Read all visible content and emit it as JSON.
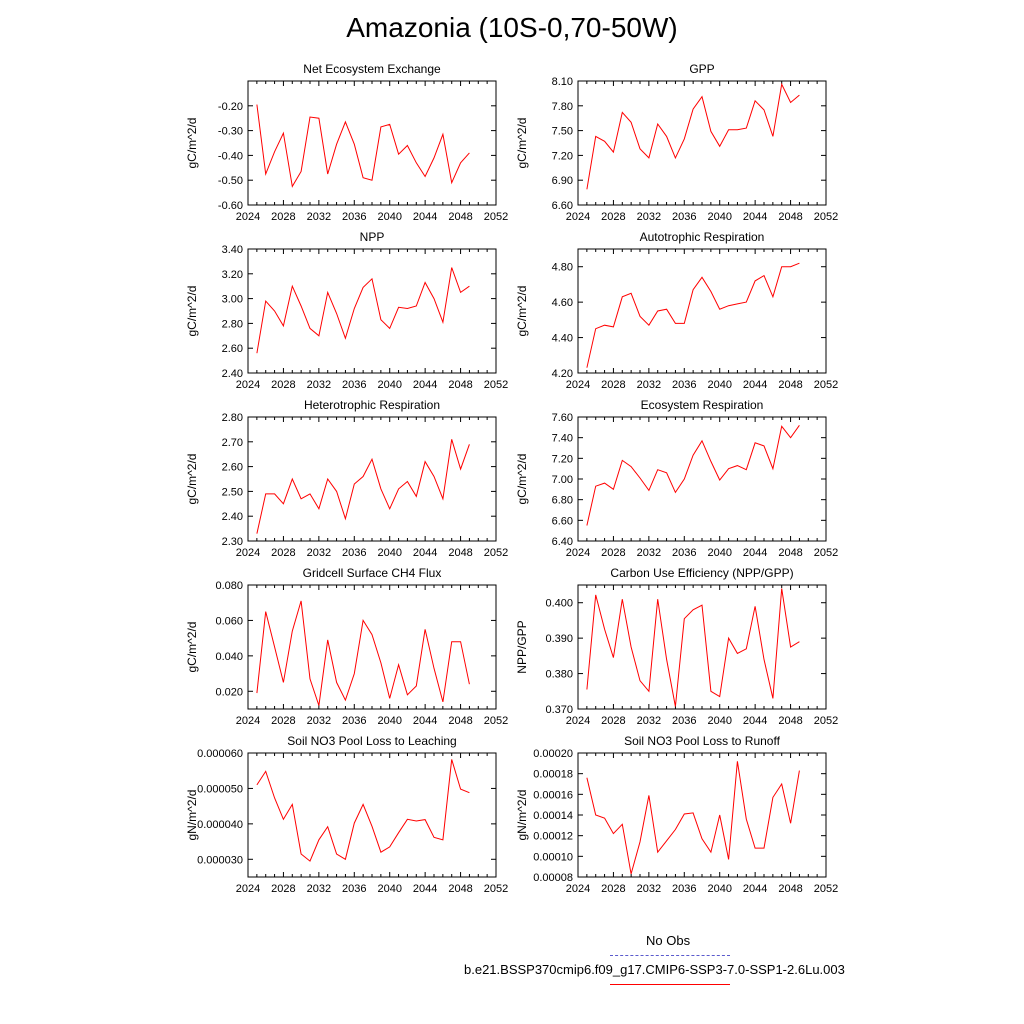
{
  "title": "Amazonia (10S-0,70-50W)",
  "colors": {
    "series": "#ff0000",
    "obs": "#5a5acd",
    "axis": "#000000"
  },
  "legend": {
    "obs_label": "No Obs",
    "model_label": "b.e21.BSSP370cmip6.f09_g17.CMIP6-SSP3-7.0-SSP1-2.6Lu.003"
  },
  "x_values": [
    2025,
    2026,
    2027,
    2028,
    2029,
    2030,
    2031,
    2032,
    2033,
    2034,
    2035,
    2036,
    2037,
    2038,
    2039,
    2040,
    2041,
    2042,
    2043,
    2044,
    2045,
    2046,
    2047,
    2048,
    2049
  ],
  "chart_data": [
    {
      "type": "line",
      "title": "Net Ecosystem Exchange",
      "ylabel": "gC/m^2/d",
      "xlim": [
        2024,
        2052
      ],
      "xticks": [
        "2024",
        "2028",
        "2032",
        "2036",
        "2040",
        "2044",
        "2048",
        "2052"
      ],
      "ylim": [
        -0.6,
        -0.1
      ],
      "yticks": [
        "-0.60",
        "-0.50",
        "-0.40",
        "-0.30",
        "-0.20"
      ],
      "values": [
        -0.195,
        -0.475,
        -0.385,
        -0.31,
        -0.525,
        -0.465,
        -0.245,
        -0.25,
        -0.475,
        -0.355,
        -0.265,
        -0.355,
        -0.49,
        -0.5,
        -0.285,
        -0.275,
        -0.395,
        -0.36,
        -0.43,
        -0.485,
        -0.41,
        -0.315,
        -0.51,
        -0.43,
        -0.39
      ]
    },
    {
      "type": "line",
      "title": "GPP",
      "ylabel": "gC/m^2/d",
      "xlim": [
        2024,
        2052
      ],
      "xticks": [
        "2024",
        "2028",
        "2032",
        "2036",
        "2040",
        "2044",
        "2048",
        "2052"
      ],
      "ylim": [
        6.6,
        8.1
      ],
      "yticks": [
        "6.60",
        "6.90",
        "7.20",
        "7.50",
        "7.80",
        "8.10"
      ],
      "values": [
        6.79,
        7.43,
        7.37,
        7.24,
        7.72,
        7.6,
        7.28,
        7.17,
        7.58,
        7.43,
        7.17,
        7.4,
        7.76,
        7.91,
        7.49,
        7.31,
        7.51,
        7.51,
        7.53,
        7.86,
        7.75,
        7.43,
        8.06,
        7.84,
        7.93
      ]
    },
    {
      "type": "line",
      "title": "NPP",
      "ylabel": "gC/m^2/d",
      "xlim": [
        2024,
        2052
      ],
      "xticks": [
        "2024",
        "2028",
        "2032",
        "2036",
        "2040",
        "2044",
        "2048",
        "2052"
      ],
      "ylim": [
        2.4,
        3.4
      ],
      "yticks": [
        "2.40",
        "2.60",
        "2.80",
        "3.00",
        "3.20",
        "3.40"
      ],
      "values": [
        2.56,
        2.98,
        2.9,
        2.78,
        3.1,
        2.94,
        2.76,
        2.7,
        3.05,
        2.88,
        2.68,
        2.92,
        3.09,
        3.16,
        2.83,
        2.76,
        2.93,
        2.92,
        2.94,
        3.13,
        3.0,
        2.81,
        3.25,
        3.05,
        3.1
      ]
    },
    {
      "type": "line",
      "title": "Autotrophic Respiration",
      "ylabel": "gC/m^2/d",
      "xlim": [
        2024,
        2052
      ],
      "xticks": [
        "2024",
        "2028",
        "2032",
        "2036",
        "2040",
        "2044",
        "2048",
        "2052"
      ],
      "ylim": [
        4.2,
        4.9
      ],
      "yticks": [
        "4.20",
        "4.40",
        "4.60",
        "4.80"
      ],
      "values": [
        4.23,
        4.45,
        4.47,
        4.46,
        4.63,
        4.65,
        4.52,
        4.47,
        4.55,
        4.56,
        4.48,
        4.48,
        4.67,
        4.74,
        4.66,
        4.56,
        4.58,
        4.59,
        4.6,
        4.72,
        4.75,
        4.63,
        4.8,
        4.8,
        4.82
      ]
    },
    {
      "type": "line",
      "title": "Heterotrophic Respiration",
      "ylabel": "gC/m^2/d",
      "xlim": [
        2024,
        2052
      ],
      "xticks": [
        "2024",
        "2028",
        "2032",
        "2036",
        "2040",
        "2044",
        "2048",
        "2052"
      ],
      "ylim": [
        2.3,
        2.8
      ],
      "yticks": [
        "2.30",
        "2.40",
        "2.50",
        "2.60",
        "2.70",
        "2.80"
      ],
      "values": [
        2.33,
        2.49,
        2.49,
        2.45,
        2.55,
        2.47,
        2.49,
        2.43,
        2.55,
        2.5,
        2.39,
        2.53,
        2.56,
        2.63,
        2.51,
        2.43,
        2.51,
        2.54,
        2.48,
        2.62,
        2.56,
        2.47,
        2.71,
        2.59,
        2.69
      ]
    },
    {
      "type": "line",
      "title": "Ecosystem Respiration",
      "ylabel": "gC/m^2/d",
      "xlim": [
        2024,
        2052
      ],
      "xticks": [
        "2024",
        "2028",
        "2032",
        "2036",
        "2040",
        "2044",
        "2048",
        "2052"
      ],
      "ylim": [
        6.4,
        7.6
      ],
      "yticks": [
        "6.40",
        "6.60",
        "6.80",
        "7.00",
        "7.20",
        "7.40",
        "7.60"
      ],
      "values": [
        6.55,
        6.93,
        6.96,
        6.9,
        7.18,
        7.12,
        7.01,
        6.89,
        7.09,
        7.06,
        6.87,
        7.0,
        7.23,
        7.37,
        7.17,
        6.99,
        7.1,
        7.13,
        7.09,
        7.35,
        7.32,
        7.1,
        7.51,
        7.4,
        7.52
      ]
    },
    {
      "type": "line",
      "title": "Gridcell Surface CH4 Flux",
      "ylabel": "gC/m^2/d",
      "xlim": [
        2024,
        2052
      ],
      "xticks": [
        "2024",
        "2028",
        "2032",
        "2036",
        "2040",
        "2044",
        "2048",
        "2052"
      ],
      "ylim": [
        0.01,
        0.08
      ],
      "yticks": [
        "0.020",
        "0.040",
        "0.060",
        "0.080"
      ],
      "values": [
        0.019,
        0.065,
        0.045,
        0.025,
        0.054,
        0.071,
        0.027,
        0.012,
        0.049,
        0.025,
        0.015,
        0.03,
        0.06,
        0.052,
        0.036,
        0.016,
        0.035,
        0.018,
        0.023,
        0.055,
        0.033,
        0.014,
        0.048,
        0.048,
        0.024
      ]
    },
    {
      "type": "line",
      "title": "Carbon Use Efficiency (NPP/GPP)",
      "ylabel": "NPP/GPP",
      "xlim": [
        2024,
        2052
      ],
      "xticks": [
        "2024",
        "2028",
        "2032",
        "2036",
        "2040",
        "2044",
        "2048",
        "2052"
      ],
      "ylim": [
        0.37,
        0.405
      ],
      "yticks": [
        "0.370",
        "0.380",
        "0.390",
        "0.400"
      ],
      "values": [
        0.3755,
        0.4022,
        0.3925,
        0.3845,
        0.401,
        0.3875,
        0.378,
        0.375,
        0.401,
        0.384,
        0.3707,
        0.3955,
        0.398,
        0.3993,
        0.375,
        0.3735,
        0.39,
        0.3857,
        0.387,
        0.399,
        0.384,
        0.373,
        0.404,
        0.3875,
        0.389
      ]
    },
    {
      "type": "line",
      "title": "Soil NO3 Pool Loss to Leaching",
      "ylabel": "gN/m^2/d",
      "xlim": [
        2024,
        2052
      ],
      "xticks": [
        "2024",
        "2028",
        "2032",
        "2036",
        "2040",
        "2044",
        "2048",
        "2052"
      ],
      "ylim": [
        2.5e-05,
        6e-05
      ],
      "yticks": [
        "0.000030",
        "0.000040",
        "0.000050",
        "0.000060"
      ],
      "values": [
        5.1e-05,
        5.48e-05,
        4.73e-05,
        4.13e-05,
        4.55e-05,
        3.15e-05,
        2.95e-05,
        3.55e-05,
        3.92e-05,
        3.15e-05,
        3e-05,
        4.02e-05,
        4.55e-05,
        3.93e-05,
        3.2e-05,
        3.35e-05,
        3.75e-05,
        4.13e-05,
        4.08e-05,
        4.12e-05,
        3.62e-05,
        3.55e-05,
        5.82e-05,
        4.98e-05,
        4.88e-05
      ]
    },
    {
      "type": "line",
      "title": "Soil NO3 Pool Loss to Runoff",
      "ylabel": "gN/m^2/d",
      "xlim": [
        2024,
        2052
      ],
      "xticks": [
        "2024",
        "2028",
        "2032",
        "2036",
        "2040",
        "2044",
        "2048",
        "2052"
      ],
      "ylim": [
        8e-05,
        0.0002
      ],
      "yticks": [
        "0.00008",
        "0.00010",
        "0.00012",
        "0.00014",
        "0.00016",
        "0.00018",
        "0.00020"
      ],
      "values": [
        0.000176,
        0.00014,
        0.000137,
        0.000122,
        0.000131,
        8.3e-05,
        0.000114,
        0.000159,
        0.000104,
        0.000115,
        0.000126,
        0.000141,
        0.000142,
        0.000117,
        0.000104,
        0.00014,
        9.7e-05,
        0.000192,
        0.000136,
        0.000108,
        0.000108,
        0.000157,
        0.00017,
        0.000132,
        0.000183
      ]
    }
  ]
}
